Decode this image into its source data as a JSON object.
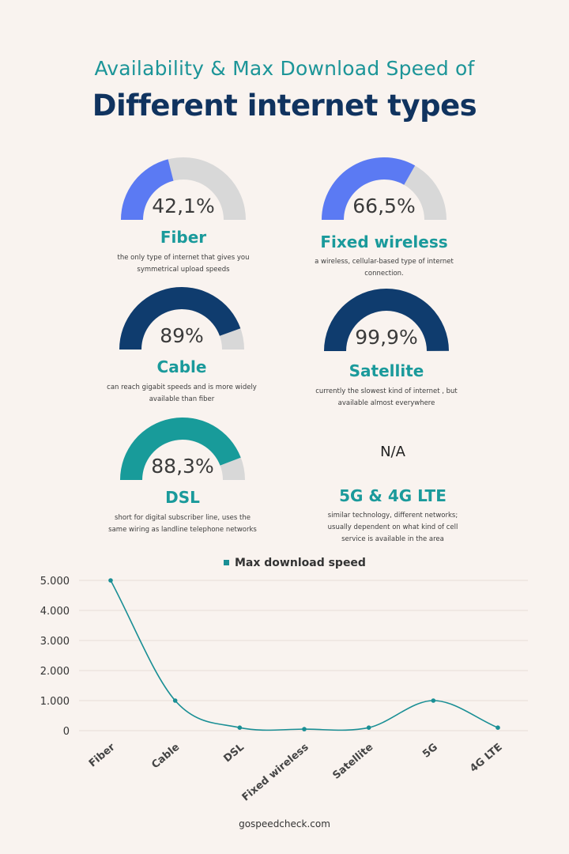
{
  "title_line1": "Availability & Max Download Speed of",
  "title_line2": "Different internet types",
  "gauges": [
    {
      "name": "Fiber",
      "percent_label": "42,1%",
      "value": 42.1,
      "fill_color": "#5b7af3",
      "track_color": "#d8d8d8",
      "description_lines": [
        "the only type of internet that gives you",
        "symmetrical upload speeds"
      ]
    },
    {
      "name": "Fixed wireless",
      "percent_label": "66,5%",
      "value": 66.5,
      "fill_color": "#5b7af3",
      "track_color": "#d8d8d8",
      "description_lines": [
        "a wireless, cellular-based type of internet",
        "connection."
      ]
    },
    {
      "name": "Cable",
      "percent_label": "89%",
      "value": 89,
      "fill_color": "#0f3c6e",
      "track_color": "#d8d8d8",
      "description_lines": [
        "can reach gigabit speeds and is more widely",
        "available than fiber"
      ]
    },
    {
      "name": "Satellite",
      "percent_label": "99,9%",
      "value": 99.9,
      "fill_color": "#0f3c6e",
      "track_color": "#d8d8d8",
      "description_lines": [
        "currently the slowest kind of internet , but",
        "available almost everywhere"
      ]
    },
    {
      "name": "DSL",
      "percent_label": "88,3%",
      "value": 88.3,
      "fill_color": "#189b9a",
      "track_color": "#d8d8d8",
      "description_lines": [
        "short for digital subscriber line, uses the",
        "same wiring as landline telephone networks"
      ]
    }
  ],
  "na_card": {
    "label": "N/A",
    "name": "5G & 4G LTE",
    "description_lines": [
      "similar technology, different networks;",
      "usually dependent on what kind of cell",
      "service is available in the area"
    ]
  },
  "chart_data": {
    "type": "line",
    "categories": [
      "Fiber",
      "Cable",
      "DSL",
      "Fixed wireless",
      "Satellite",
      "5G",
      "4G LTE"
    ],
    "series": [
      {
        "name": "Max download speed",
        "values": [
          5000,
          1000,
          100,
          50,
          100,
          1000,
          100
        ],
        "color": "#1a8f95"
      }
    ],
    "y_ticks": [
      "5.000",
      "4.000",
      "3.000",
      "2.000",
      "1.000",
      "0"
    ],
    "ylim": [
      0,
      5000
    ],
    "grid": true,
    "legend_position": "top-center",
    "smooth": true
  },
  "footer": "gospeedcheck.com",
  "colors": {
    "background": "#f9f3ef",
    "title_teal": "#1c9598",
    "title_navy": "#10335f",
    "name_teal": "#1a9a9b"
  }
}
